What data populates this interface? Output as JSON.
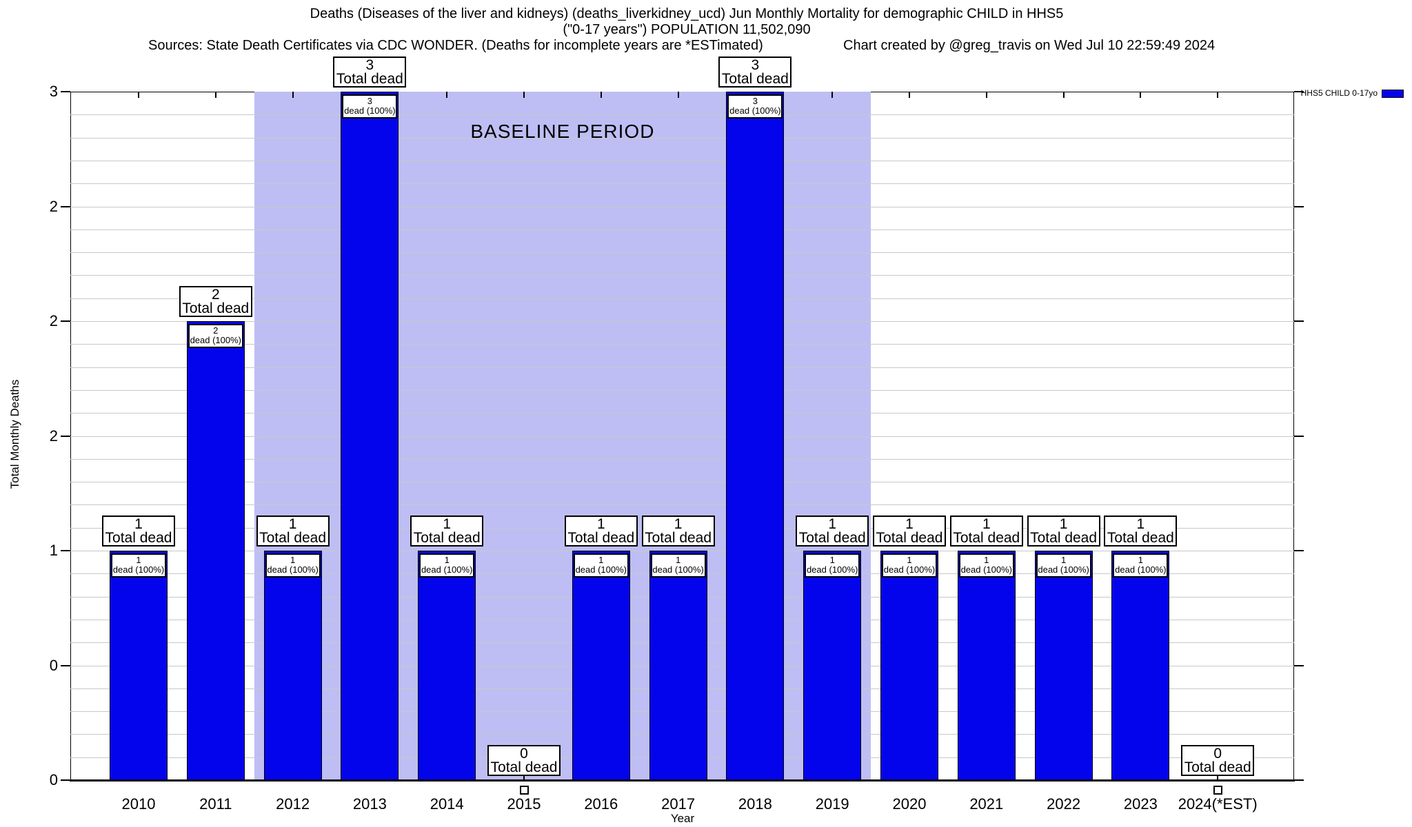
{
  "header": {
    "title_line1": "Deaths (Diseases of the liver and kidneys) (deaths_liverkidney_ucd) Jun Monthly Mortality for demographic CHILD in HHS5",
    "title_line2": "(\"0-17 years\") POPULATION 11,502,090",
    "sources": "Sources: State Death Certificates via CDC WONDER. (Deaths for incomplete years are *ESTimated)",
    "credit": "Chart created by @greg_travis on Wed Jul 10 22:59:49 2024"
  },
  "chart_data": {
    "type": "bar",
    "title": "Deaths (Diseases of the liver and kidneys) (deaths_liverkidney_ucd) Jun Monthly Mortality for demographic CHILD in HHS5 (\"0-17 years\") POPULATION 11,502,090",
    "xlabel": "Year",
    "ylabel": "Total Monthly Deaths",
    "categories": [
      "2010",
      "2011",
      "2012",
      "2013",
      "2014",
      "2015",
      "2016",
      "2017",
      "2018",
      "2019",
      "2020",
      "2021",
      "2022",
      "2023",
      "2024(*EST)"
    ],
    "values": [
      1,
      2,
      1,
      3,
      1,
      0,
      1,
      1,
      3,
      1,
      1,
      1,
      1,
      1,
      0
    ],
    "series_name": "HHS5 CHILD 0-17yo",
    "ylim": [
      0,
      3
    ],
    "y_major_ticks": [
      {
        "value": 3,
        "label": "3"
      },
      {
        "value": 2.5,
        "label": "2"
      },
      {
        "value": 2,
        "label": "2"
      },
      {
        "value": 1.5,
        "label": "2"
      },
      {
        "value": 1,
        "label": "1"
      },
      {
        "value": 0.5,
        "label": "0"
      },
      {
        "value": 0,
        "label": "0"
      }
    ],
    "minor_grid_step": 0.1,
    "grid": "on",
    "bar_annotation_top_suffix": "Total dead",
    "bar_annotation_inner_suffix": "dead (100%)",
    "baseline_band": {
      "label": "BASELINE PERIOD",
      "from_category": "2012",
      "to_category": "2019"
    },
    "legend": {
      "position": "top-right",
      "entries": [
        {
          "label": "HHS5 CHILD 0-17yo",
          "color": "#0404EC"
        }
      ]
    },
    "colors": {
      "bar": "#0404EC",
      "baseline_band": "#BEBEF4",
      "grid": "#C8C8C8",
      "axis": "#000000"
    }
  }
}
